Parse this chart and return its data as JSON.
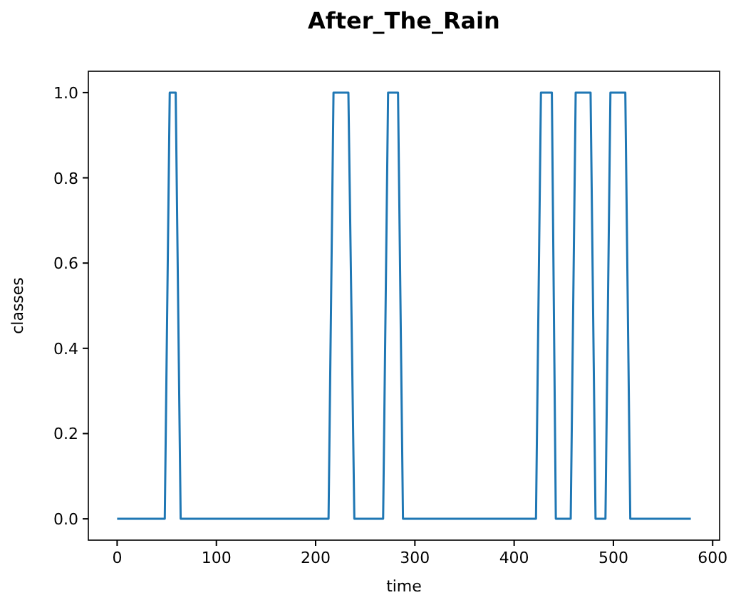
{
  "chart_data": {
    "type": "line",
    "title": "After_The_Rain",
    "xlabel": "time",
    "ylabel": "classes",
    "x": [
      0,
      48,
      53,
      59,
      64,
      213,
      218,
      233,
      239,
      268,
      273,
      283,
      288,
      422,
      427,
      438,
      442,
      457,
      462,
      477,
      482,
      492,
      497,
      512,
      517,
      578
    ],
    "series": [
      {
        "color": "#1f77b4",
        "values": [
          0,
          0,
          1,
          1,
          0,
          0,
          1,
          1,
          0,
          0,
          1,
          1,
          0,
          0,
          1,
          1,
          0,
          0,
          1,
          1,
          0,
          0,
          1,
          1,
          0,
          0
        ]
      }
    ],
    "xlim": [
      -29,
      607
    ],
    "xticks": [
      0,
      100,
      200,
      300,
      400,
      500,
      600
    ],
    "ylim": [
      -0.05,
      1.05
    ],
    "yticks": [
      {
        "value": 0,
        "label": "0.0"
      },
      {
        "value": 0.2,
        "label": "0.2"
      },
      {
        "value": 0.4,
        "label": "0.4"
      },
      {
        "value": 0.6,
        "label": "0.6"
      },
      {
        "value": 0.8,
        "label": "0.8"
      },
      {
        "value": 1,
        "label": "1.0"
      }
    ],
    "grid": false
  }
}
